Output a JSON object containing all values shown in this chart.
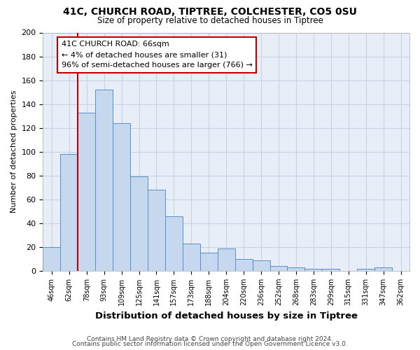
{
  "title1": "41C, CHURCH ROAD, TIPTREE, COLCHESTER, CO5 0SU",
  "title2": "Size of property relative to detached houses in Tiptree",
  "xlabel": "Distribution of detached houses by size in Tiptree",
  "ylabel": "Number of detached properties",
  "footer1": "Contains HM Land Registry data © Crown copyright and database right 2024.",
  "footer2": "Contains public sector information licensed under the Open Government Licence v3.0.",
  "categories": [
    "46sqm",
    "62sqm",
    "78sqm",
    "93sqm",
    "109sqm",
    "125sqm",
    "141sqm",
    "157sqm",
    "173sqm",
    "188sqm",
    "204sqm",
    "220sqm",
    "236sqm",
    "252sqm",
    "268sqm",
    "283sqm",
    "299sqm",
    "315sqm",
    "331sqm",
    "347sqm",
    "362sqm"
  ],
  "values": [
    20,
    98,
    133,
    152,
    124,
    79,
    68,
    46,
    23,
    15,
    19,
    10,
    9,
    4,
    3,
    2,
    2,
    0,
    2,
    3,
    0
  ],
  "bar_color": "#c5d8ee",
  "bar_edge_color": "#5b8fc9",
  "grid_color": "#c8d4e3",
  "bg_color": "#ffffff",
  "plot_bg_color": "#e8eef7",
  "vline_color": "#c00000",
  "annotation_text": "41C CHURCH ROAD: 66sqm\n← 4% of detached houses are smaller (31)\n96% of semi-detached houses are larger (766) →",
  "annotation_box_color": "#ffffff",
  "annotation_box_edge": "#c00000",
  "ylim": [
    0,
    200
  ],
  "yticks": [
    0,
    20,
    40,
    60,
    80,
    100,
    120,
    140,
    160,
    180,
    200
  ]
}
